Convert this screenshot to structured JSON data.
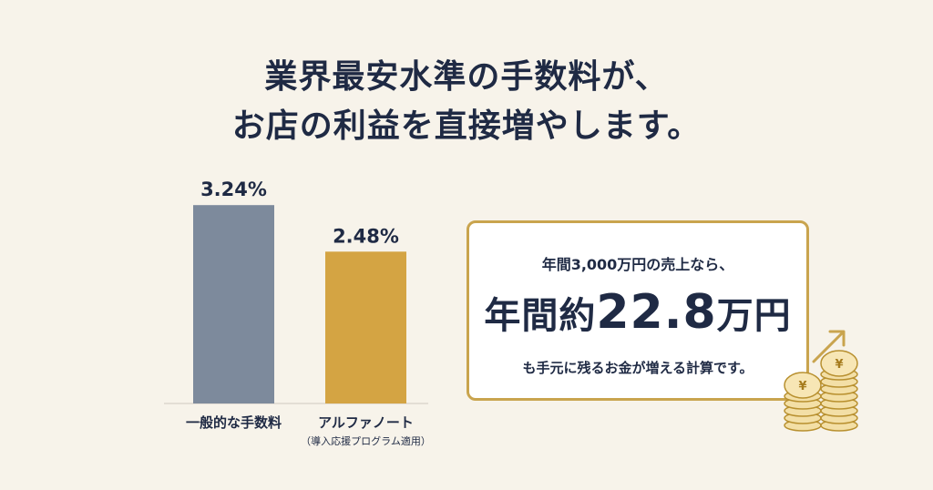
{
  "headline": {
    "line1": "業界最安水準の手数料が、",
    "line2": "お店の利益を直接増やします。"
  },
  "chart_data": {
    "type": "bar",
    "categories": [
      "一般的な手数料",
      "アルファノート"
    ],
    "category_sublabels": [
      "",
      "（導入応援プログラム適用）"
    ],
    "values": [
      3.24,
      2.48
    ],
    "value_labels": [
      "3.24%",
      "2.48%"
    ],
    "unit": "%",
    "ylim": [
      0,
      3.6
    ],
    "colors": [
      "#7d8a9c",
      "#d4a443"
    ],
    "grid": false
  },
  "callout": {
    "line1": "年間3,000万円の売上なら、",
    "line2_prefix": "年間約",
    "line2_number": "22.8",
    "line2_suffix": "万円",
    "line3": "も手元に残るお金が増える計算です。"
  },
  "illustration": {
    "coin_symbol": "¥",
    "icon": "coin-stack-growth-icon",
    "accent_color": "#c9a44e"
  }
}
